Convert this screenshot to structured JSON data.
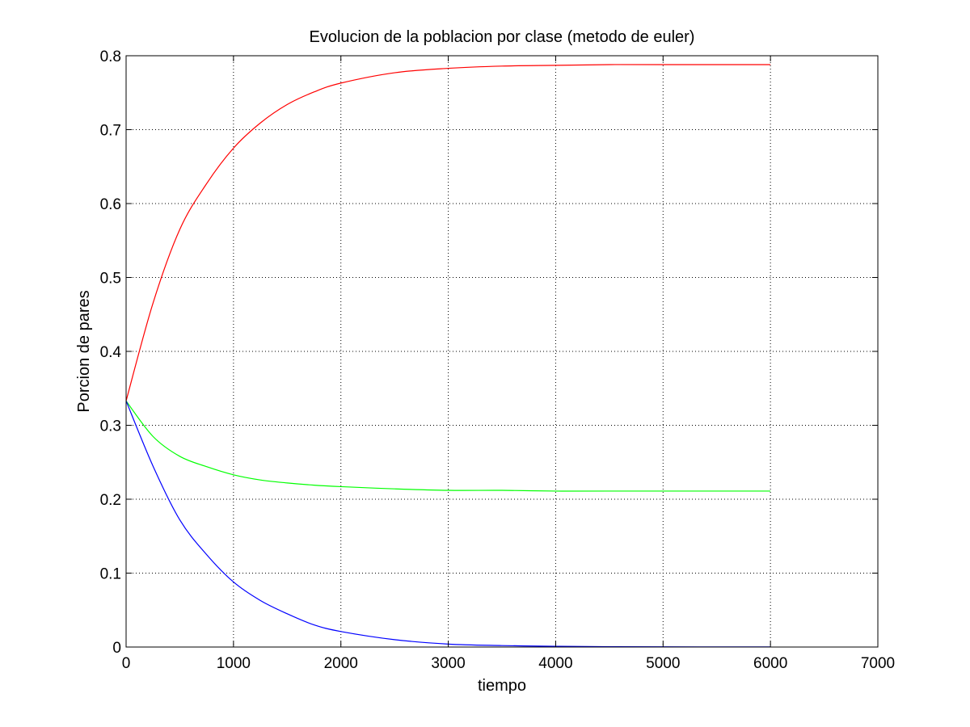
{
  "chart_data": {
    "type": "line",
    "title": "Evolucion de la poblacion por clase (metodo de euler)",
    "xlabel": "tiempo",
    "ylabel": "Porcion de pares",
    "xlim": [
      0,
      7000
    ],
    "ylim": [
      0,
      0.8
    ],
    "xticks": [
      0,
      1000,
      2000,
      3000,
      4000,
      5000,
      6000,
      7000
    ],
    "yticks": [
      0,
      0.1,
      0.2,
      0.3,
      0.4,
      0.5,
      0.6,
      0.7,
      0.8
    ],
    "xtick_labels": [
      "0",
      "1000",
      "2000",
      "3000",
      "4000",
      "5000",
      "6000",
      "7000"
    ],
    "ytick_labels": [
      "0",
      "0.1",
      "0.2",
      "0.3",
      "0.4",
      "0.5",
      "0.6",
      "0.7",
      "0.8"
    ],
    "grid": true,
    "legend": "none",
    "series": [
      {
        "color": "#ff0000",
        "x": [
          0,
          250,
          500,
          750,
          1000,
          1250,
          1500,
          1750,
          2000,
          2500,
          3000,
          3500,
          4000,
          4500,
          5000,
          5500,
          6000
        ],
        "y": [
          0.333,
          0.465,
          0.565,
          0.627,
          0.675,
          0.709,
          0.734,
          0.751,
          0.763,
          0.777,
          0.783,
          0.786,
          0.787,
          0.788,
          0.788,
          0.788,
          0.788
        ]
      },
      {
        "color": "#00ff00",
        "x": [
          0,
          250,
          500,
          750,
          1000,
          1250,
          1500,
          1750,
          2000,
          2500,
          3000,
          3500,
          4000,
          4500,
          5000,
          5500,
          6000
        ],
        "y": [
          0.333,
          0.285,
          0.258,
          0.244,
          0.233,
          0.226,
          0.222,
          0.219,
          0.217,
          0.214,
          0.212,
          0.212,
          0.211,
          0.211,
          0.211,
          0.211,
          0.211
        ]
      },
      {
        "color": "#0000ff",
        "x": [
          0,
          250,
          500,
          750,
          1000,
          1250,
          1500,
          1750,
          2000,
          2500,
          3000,
          3500,
          4000,
          4500,
          5000,
          5500,
          6000
        ],
        "y": [
          0.333,
          0.245,
          0.172,
          0.125,
          0.088,
          0.063,
          0.045,
          0.03,
          0.021,
          0.01,
          0.004,
          0.002,
          0.001,
          0.0005,
          0.0003,
          0.0002,
          0.0001
        ]
      }
    ]
  }
}
